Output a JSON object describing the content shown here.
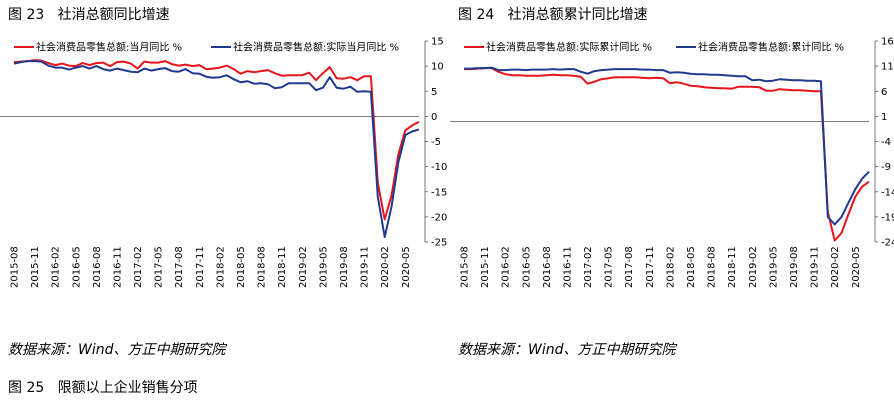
{
  "figures": [
    {
      "id": "left",
      "number": "图 23",
      "title": "社消总额同比增速"
    },
    {
      "id": "right",
      "number": "图 24",
      "title": "社消总额累计同比增速"
    }
  ],
  "sources": [
    "数据来源：Wind、方正中期研究院",
    "数据来源：Wind、方正中期研究院"
  ],
  "next_figure": {
    "number": "图 25",
    "title": "限额以上企业销售分项"
  },
  "colors": {
    "red": "#e8141c",
    "blue": "#1f3a8f"
  },
  "chart_data": [
    {
      "type": "line",
      "title": "社消总额同比增速",
      "categories": [
        "2015-08",
        "2015-09",
        "2015-10",
        "2015-11",
        "2015-12",
        "2016-01",
        "2016-02",
        "2016-03",
        "2016-04",
        "2016-05",
        "2016-06",
        "2016-07",
        "2016-08",
        "2016-09",
        "2016-10",
        "2016-11",
        "2016-12",
        "2017-01",
        "2017-02",
        "2017-03",
        "2017-04",
        "2017-05",
        "2017-06",
        "2017-07",
        "2017-08",
        "2017-09",
        "2017-10",
        "2017-11",
        "2017-12",
        "2018-01",
        "2018-02",
        "2018-03",
        "2018-04",
        "2018-05",
        "2018-06",
        "2018-07",
        "2018-08",
        "2018-09",
        "2018-10",
        "2018-11",
        "2018-12",
        "2019-01",
        "2019-02",
        "2019-03",
        "2019-04",
        "2019-05",
        "2019-06",
        "2019-07",
        "2019-08",
        "2019-09",
        "2019-10",
        "2019-11",
        "2019-12",
        "2020-01",
        "2020-02",
        "2020-03",
        "2020-04",
        "2020-05",
        "2020-06",
        "2020-07"
      ],
      "x_tick_labels": [
        "2015-08",
        "2015-11",
        "2016-02",
        "2016-05",
        "2016-08",
        "2016-11",
        "2017-02",
        "2017-05",
        "2017-08",
        "2017-11",
        "2018-02",
        "2018-05",
        "2018-08",
        "2018-11",
        "2019-02",
        "2019-05",
        "2019-08",
        "2019-11",
        "2020-02",
        "2020-05"
      ],
      "series": [
        {
          "name": "社会消费品零售总额:当月同比  %",
          "color": "#e8141c",
          "values": [
            10.8,
            10.9,
            11.0,
            11.2,
            11.1,
            10.6,
            10.2,
            10.5,
            10.1,
            10.0,
            10.6,
            10.2,
            10.6,
            10.7,
            10.0,
            10.8,
            10.9,
            10.5,
            9.5,
            10.9,
            10.7,
            10.7,
            11.0,
            10.4,
            10.1,
            10.3,
            10.0,
            10.2,
            9.4,
            9.5,
            9.7,
            10.1,
            9.4,
            8.5,
            9.0,
            8.8,
            9.0,
            9.2,
            8.6,
            8.1,
            8.2,
            8.2,
            8.2,
            8.7,
            7.2,
            8.6,
            9.8,
            7.6,
            7.5,
            7.8,
            7.2,
            8.0,
            8.0,
            -13.2,
            -20.5,
            -15.8,
            -7.5,
            -2.8,
            -1.8,
            -1.1
          ]
        },
        {
          "name": "社会消费品零售总额:实际当月同比  %",
          "color": "#1f3a8f",
          "values": [
            10.5,
            10.8,
            11.0,
            11.0,
            10.9,
            10.1,
            9.7,
            9.7,
            9.3,
            9.7,
            10.0,
            9.5,
            10.0,
            9.4,
            9.1,
            9.5,
            9.2,
            8.9,
            8.8,
            9.5,
            9.1,
            9.4,
            9.6,
            9.0,
            8.9,
            9.4,
            8.6,
            8.5,
            7.9,
            7.7,
            7.8,
            8.2,
            7.4,
            6.8,
            7.0,
            6.5,
            6.6,
            6.4,
            5.6,
            5.8,
            6.6,
            6.6,
            6.6,
            6.6,
            5.2,
            5.7,
            7.8,
            5.7,
            5.5,
            5.9,
            4.9,
            5.0,
            4.9,
            -16.0,
            -24.0,
            -18.0,
            -9.1,
            -3.7,
            -3.0,
            -2.6
          ]
        }
      ],
      "ylim": [
        -25,
        15
      ],
      "y_ticks": [
        15,
        10,
        5,
        0,
        -5,
        -10,
        -15,
        -20,
        -25
      ],
      "grid": false,
      "legend": "top"
    },
    {
      "type": "line",
      "title": "社消总额累计同比增速",
      "categories": [
        "2015-08",
        "2015-09",
        "2015-10",
        "2015-11",
        "2015-12",
        "2016-01",
        "2016-02",
        "2016-03",
        "2016-04",
        "2016-05",
        "2016-06",
        "2016-07",
        "2016-08",
        "2016-09",
        "2016-10",
        "2016-11",
        "2016-12",
        "2017-01",
        "2017-02",
        "2017-03",
        "2017-04",
        "2017-05",
        "2017-06",
        "2017-07",
        "2017-08",
        "2017-09",
        "2017-10",
        "2017-11",
        "2017-12",
        "2018-01",
        "2018-02",
        "2018-03",
        "2018-04",
        "2018-05",
        "2018-06",
        "2018-07",
        "2018-08",
        "2018-09",
        "2018-10",
        "2018-11",
        "2018-12",
        "2019-01",
        "2019-02",
        "2019-03",
        "2019-04",
        "2019-05",
        "2019-06",
        "2019-07",
        "2019-08",
        "2019-09",
        "2019-10",
        "2019-11",
        "2019-12",
        "2020-01",
        "2020-02",
        "2020-03",
        "2020-04",
        "2020-05",
        "2020-06",
        "2020-07"
      ],
      "x_tick_labels": [
        "2015-08",
        "2015-11",
        "2016-02",
        "2016-05",
        "2016-08",
        "2016-11",
        "2017-02",
        "2017-05",
        "2017-08",
        "2017-11",
        "2018-02",
        "2018-05",
        "2018-08",
        "2018-11",
        "2019-02",
        "2019-05",
        "2019-08",
        "2019-11",
        "2020-02",
        "2020-05"
      ],
      "series": [
        {
          "name": "社会消费品零售总额:实际累计同比  %",
          "color": "#e8141c",
          "values": [
            10.4,
            10.4,
            10.5,
            10.6,
            10.6,
            9.9,
            9.4,
            9.2,
            9.2,
            9.1,
            9.1,
            9.1,
            9.2,
            9.3,
            9.2,
            9.2,
            9.1,
            8.9,
            7.5,
            7.9,
            8.4,
            8.6,
            8.8,
            8.8,
            8.8,
            8.8,
            8.7,
            8.6,
            8.7,
            8.6,
            7.6,
            7.8,
            7.5,
            7.1,
            7.0,
            6.8,
            6.7,
            6.6,
            6.6,
            6.5,
            6.9,
            6.9,
            6.9,
            6.8,
            6.1,
            6.1,
            6.4,
            6.3,
            6.2,
            6.2,
            6.1,
            6.0,
            6.0,
            -18.0,
            -23.7,
            -22.2,
            -18.5,
            -15.0,
            -13.0,
            -12.0
          ]
        },
        {
          "name": "社会消费品零售总额:累计同比  %",
          "color": "#1f3a8f",
          "values": [
            10.5,
            10.5,
            10.6,
            10.6,
            10.7,
            10.2,
            10.2,
            10.3,
            10.3,
            10.2,
            10.3,
            10.3,
            10.3,
            10.4,
            10.3,
            10.4,
            10.4,
            9.9,
            9.5,
            10.0,
            10.2,
            10.3,
            10.4,
            10.4,
            10.4,
            10.4,
            10.3,
            10.3,
            10.2,
            10.2,
            9.7,
            9.8,
            9.7,
            9.5,
            9.4,
            9.4,
            9.3,
            9.3,
            9.2,
            9.1,
            9.0,
            9.0,
            8.2,
            8.3,
            8.0,
            8.1,
            8.4,
            8.3,
            8.2,
            8.2,
            8.1,
            8.1,
            8.0,
            -19.0,
            -20.5,
            -19.0,
            -16.2,
            -13.5,
            -11.4,
            -10.0
          ]
        }
      ],
      "ylim": [
        -24,
        16
      ],
      "y_ticks": [
        16,
        11,
        6,
        1,
        -4,
        -9,
        -14,
        -19,
        -24
      ],
      "grid": false,
      "legend": "top"
    }
  ]
}
